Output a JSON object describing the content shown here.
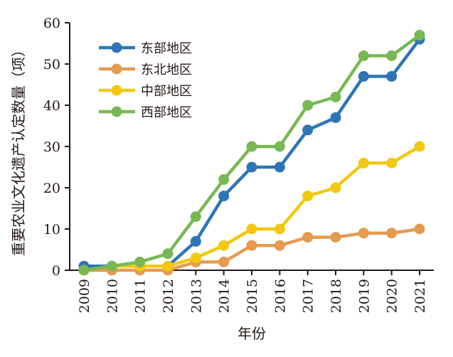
{
  "chart_data": {
    "type": "line",
    "title": "",
    "xlabel": "年份",
    "ylabel": "重要农业文化遗产认定数量（项）",
    "x": [
      "2009",
      "2010",
      "2011",
      "2012",
      "2013",
      "2014",
      "2015",
      "2016",
      "2017",
      "2018",
      "2019",
      "2020",
      "2021"
    ],
    "ylim": [
      0,
      60
    ],
    "yticks": [
      0,
      10,
      20,
      30,
      40,
      50,
      60
    ],
    "grid": false,
    "legend_position": "top-left",
    "series": [
      {
        "name": "东部地区",
        "color": "#2e75b6",
        "values": [
          1,
          1,
          1,
          1,
          7,
          18,
          25,
          25,
          34,
          37,
          47,
          47,
          56
        ]
      },
      {
        "name": "东北地区",
        "color": "#e59b4f",
        "values": [
          0,
          0,
          0,
          0,
          2,
          2,
          6,
          6,
          8,
          8,
          9,
          9,
          10
        ]
      },
      {
        "name": "中部地区",
        "color": "#f2c811",
        "values": [
          0,
          1,
          1,
          1,
          3,
          6,
          10,
          10,
          18,
          20,
          26,
          26,
          30
        ]
      },
      {
        "name": "西部地区",
        "color": "#78b853",
        "values": [
          0,
          1,
          2,
          4,
          13,
          22,
          30,
          30,
          40,
          42,
          52,
          52,
          57
        ]
      }
    ]
  }
}
